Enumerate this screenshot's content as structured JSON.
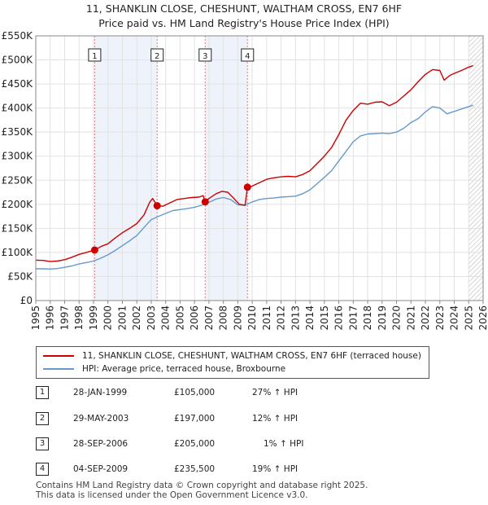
{
  "title_line1": "11, SHANKLIN CLOSE, CHESHUNT, WALTHAM CROSS, EN7 6HF",
  "title_line2": "Price paid vs. HM Land Registry's House Price Index (HPI)",
  "chart_data": {
    "type": "line",
    "title": "11, SHANKLIN CLOSE, CHESHUNT, WALTHAM CROSS, EN7 6HF",
    "subtitle": "Price paid vs. HM Land Registry's House Price Index (HPI)",
    "xlim": [
      1995,
      2026
    ],
    "ylim": [
      0,
      550000
    ],
    "y_ticks": [
      {
        "value": 0,
        "label": "£0"
      },
      {
        "value": 50000,
        "label": "£50K"
      },
      {
        "value": 100000,
        "label": "£100K"
      },
      {
        "value": 150000,
        "label": "£150K"
      },
      {
        "value": 200000,
        "label": "£200K"
      },
      {
        "value": 250000,
        "label": "£250K"
      },
      {
        "value": 300000,
        "label": "£300K"
      },
      {
        "value": 350000,
        "label": "£350K"
      },
      {
        "value": 400000,
        "label": "£400K"
      },
      {
        "value": 450000,
        "label": "£450K"
      },
      {
        "value": 500000,
        "label": "£500K"
      },
      {
        "value": 550000,
        "label": "£550K"
      }
    ],
    "x_ticks": [
      "1995",
      "1996",
      "1997",
      "1998",
      "1999",
      "2000",
      "2001",
      "2002",
      "2003",
      "2004",
      "2005",
      "2006",
      "2007",
      "2008",
      "2009",
      "2010",
      "2011",
      "2012",
      "2013",
      "2014",
      "2015",
      "2016",
      "2017",
      "2018",
      "2019",
      "2020",
      "2021",
      "2022",
      "2023",
      "2024",
      "2025",
      "2026"
    ],
    "grid": true,
    "series": [
      {
        "name": "11, SHANKLIN CLOSE, CHESHUNT, WALTHAM CROSS, EN7 6HF (terraced house)",
        "color": "#cc0000",
        "points": [
          [
            1995.0,
            84000
          ],
          [
            1995.5,
            83500
          ],
          [
            1996.0,
            81000
          ],
          [
            1996.5,
            82000
          ],
          [
            1997.0,
            85000
          ],
          [
            1997.5,
            90000
          ],
          [
            1998.0,
            96000
          ],
          [
            1998.5,
            100000
          ],
          [
            1999.08,
            105000
          ],
          [
            1999.5,
            112000
          ],
          [
            2000.0,
            118000
          ],
          [
            2000.5,
            130000
          ],
          [
            2001.0,
            141000
          ],
          [
            2001.5,
            150000
          ],
          [
            2002.0,
            160000
          ],
          [
            2002.5,
            178000
          ],
          [
            2002.9,
            205000
          ],
          [
            2003.1,
            212000
          ],
          [
            2003.41,
            197000
          ],
          [
            2003.8,
            196000
          ],
          [
            2004.3,
            203000
          ],
          [
            2004.8,
            210000
          ],
          [
            2005.3,
            212000
          ],
          [
            2005.8,
            214000
          ],
          [
            2006.3,
            215000
          ],
          [
            2006.6,
            218000
          ],
          [
            2006.74,
            205000
          ],
          [
            2007.0,
            212000
          ],
          [
            2007.5,
            222000
          ],
          [
            2007.9,
            227000
          ],
          [
            2008.3,
            225000
          ],
          [
            2008.7,
            213000
          ],
          [
            2009.1,
            200000
          ],
          [
            2009.5,
            198000
          ],
          [
            2009.67,
            235500
          ],
          [
            2010.0,
            238000
          ],
          [
            2010.5,
            245000
          ],
          [
            2011.0,
            252000
          ],
          [
            2011.5,
            255000
          ],
          [
            2012.0,
            257000
          ],
          [
            2012.5,
            258000
          ],
          [
            2013.0,
            257000
          ],
          [
            2013.5,
            262000
          ],
          [
            2014.0,
            270000
          ],
          [
            2014.5,
            285000
          ],
          [
            2015.0,
            300000
          ],
          [
            2015.5,
            318000
          ],
          [
            2016.0,
            345000
          ],
          [
            2016.5,
            375000
          ],
          [
            2017.0,
            395000
          ],
          [
            2017.5,
            410000
          ],
          [
            2018.0,
            408000
          ],
          [
            2018.5,
            412000
          ],
          [
            2019.0,
            413000
          ],
          [
            2019.5,
            405000
          ],
          [
            2020.0,
            412000
          ],
          [
            2020.5,
            425000
          ],
          [
            2021.0,
            438000
          ],
          [
            2021.5,
            455000
          ],
          [
            2022.0,
            470000
          ],
          [
            2022.5,
            480000
          ],
          [
            2023.0,
            478000
          ],
          [
            2023.3,
            458000
          ],
          [
            2023.7,
            468000
          ],
          [
            2024.0,
            472000
          ],
          [
            2024.5,
            478000
          ],
          [
            2025.0,
            485000
          ],
          [
            2025.3,
            488000
          ]
        ]
      },
      {
        "name": "HPI: Average price, terraced house, Broxbourne",
        "color": "#6699cc",
        "points": [
          [
            1995.0,
            66000
          ],
          [
            1995.5,
            66000
          ],
          [
            1996.0,
            65500
          ],
          [
            1996.5,
            66500
          ],
          [
            1997.0,
            69000
          ],
          [
            1997.5,
            72000
          ],
          [
            1998.0,
            76000
          ],
          [
            1998.5,
            79000
          ],
          [
            1999.0,
            82000
          ],
          [
            1999.5,
            88000
          ],
          [
            2000.0,
            95000
          ],
          [
            2000.5,
            104000
          ],
          [
            2001.0,
            114000
          ],
          [
            2001.5,
            124000
          ],
          [
            2002.0,
            135000
          ],
          [
            2002.5,
            152000
          ],
          [
            2003.0,
            168000
          ],
          [
            2003.5,
            175000
          ],
          [
            2004.0,
            181000
          ],
          [
            2004.5,
            187000
          ],
          [
            2005.0,
            189000
          ],
          [
            2005.5,
            191000
          ],
          [
            2006.0,
            194000
          ],
          [
            2006.5,
            198000
          ],
          [
            2007.0,
            204000
          ],
          [
            2007.5,
            211000
          ],
          [
            2008.0,
            214000
          ],
          [
            2008.5,
            210000
          ],
          [
            2009.0,
            199000
          ],
          [
            2009.5,
            198000
          ],
          [
            2010.0,
            205000
          ],
          [
            2010.5,
            210000
          ],
          [
            2011.0,
            212000
          ],
          [
            2011.5,
            213000
          ],
          [
            2012.0,
            215000
          ],
          [
            2012.5,
            216000
          ],
          [
            2013.0,
            217000
          ],
          [
            2013.5,
            222000
          ],
          [
            2014.0,
            230000
          ],
          [
            2014.5,
            243000
          ],
          [
            2015.0,
            256000
          ],
          [
            2015.5,
            270000
          ],
          [
            2016.0,
            290000
          ],
          [
            2016.5,
            310000
          ],
          [
            2017.0,
            330000
          ],
          [
            2017.5,
            342000
          ],
          [
            2018.0,
            346000
          ],
          [
            2018.5,
            347000
          ],
          [
            2019.0,
            348000
          ],
          [
            2019.5,
            347000
          ],
          [
            2020.0,
            350000
          ],
          [
            2020.5,
            358000
          ],
          [
            2021.0,
            370000
          ],
          [
            2021.5,
            378000
          ],
          [
            2022.0,
            392000
          ],
          [
            2022.5,
            403000
          ],
          [
            2023.0,
            400000
          ],
          [
            2023.5,
            388000
          ],
          [
            2024.0,
            393000
          ],
          [
            2024.5,
            398000
          ],
          [
            2025.0,
            403000
          ],
          [
            2025.3,
            406000
          ]
        ]
      }
    ],
    "transactions": [
      {
        "id": "1",
        "x": 1999.08,
        "value": 105000
      },
      {
        "id": "2",
        "x": 2003.41,
        "value": 197000
      },
      {
        "id": "3",
        "x": 2006.74,
        "value": 205000
      },
      {
        "id": "4",
        "x": 2009.67,
        "value": 235500
      }
    ],
    "shaded_ranges": [
      [
        1999.08,
        2003.41
      ],
      [
        2006.74,
        2009.67
      ]
    ],
    "hatched_from": 2025.0
  },
  "legend": {
    "property_label": "11, SHANKLIN CLOSE, CHESHUNT, WALTHAM CROSS, EN7 6HF (terraced house)",
    "hpi_label": "HPI: Average price, terraced house, Broxbourne",
    "property_color": "#cc0000",
    "hpi_color": "#6699cc"
  },
  "transactions_table": [
    {
      "num": "1",
      "date": "28-JAN-1999",
      "price": "£105,000",
      "hpi": "27% ↑ HPI"
    },
    {
      "num": "2",
      "date": "29-MAY-2003",
      "price": "£197,000",
      "hpi": "12% ↑ HPI"
    },
    {
      "num": "3",
      "date": "28-SEP-2006",
      "price": "£205,000",
      "hpi": "1% ↑ HPI"
    },
    {
      "num": "4",
      "date": "04-SEP-2009",
      "price": "£235,500",
      "hpi": "19% ↑ HPI"
    }
  ],
  "footer": {
    "line1": "Contains HM Land Registry data © Crown copyright and database right 2025.",
    "line2": "This data is licensed under the Open Government Licence v3.0."
  }
}
